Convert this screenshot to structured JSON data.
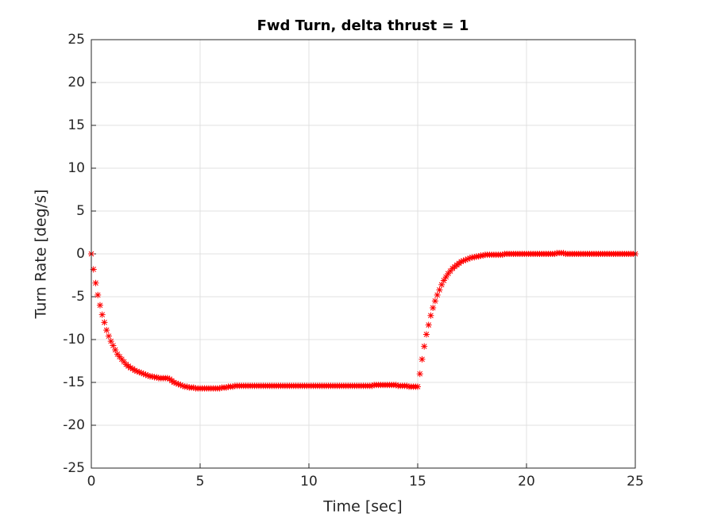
{
  "chart_data": {
    "type": "scatter",
    "title": "Fwd Turn, delta thrust = 1",
    "xlabel": "Time [sec]",
    "ylabel": "Turn Rate [deg/s]",
    "color": "#ff0000",
    "grid": true,
    "xlim": [
      0,
      25
    ],
    "xticks": [
      0,
      5,
      10,
      15,
      20,
      25
    ],
    "ylim": [
      -25,
      25
    ],
    "yticks": [
      -25,
      -20,
      -15,
      -10,
      -5,
      0,
      5,
      10,
      15,
      20,
      25
    ],
    "x": [
      0,
      0.1,
      0.2,
      0.3,
      0.4,
      0.5,
      0.6,
      0.7,
      0.8,
      0.9,
      1,
      1.1,
      1.2,
      1.3,
      1.4,
      1.5,
      1.6,
      1.7,
      1.8,
      1.9,
      2,
      2.1,
      2.2,
      2.3,
      2.4,
      2.5,
      2.6,
      2.7,
      2.8,
      2.9,
      3,
      3.1,
      3.2,
      3.3,
      3.4,
      3.5,
      3.6,
      3.7,
      3.8,
      3.9,
      4,
      4.1,
      4.2,
      4.3,
      4.4,
      4.5,
      4.6,
      4.7,
      4.8,
      4.9,
      5,
      5.1,
      5.2,
      5.3,
      5.4,
      5.5,
      5.6,
      5.7,
      5.8,
      5.9,
      6,
      6.1,
      6.2,
      6.3,
      6.4,
      6.5,
      6.6,
      6.7,
      6.8,
      6.9,
      7,
      7.1,
      7.2,
      7.3,
      7.4,
      7.5,
      7.6,
      7.7,
      7.8,
      7.9,
      8,
      8.1,
      8.2,
      8.3,
      8.4,
      8.5,
      8.6,
      8.7,
      8.8,
      8.9,
      9,
      9.1,
      9.2,
      9.3,
      9.4,
      9.5,
      9.6,
      9.7,
      9.8,
      9.9,
      10,
      10.1,
      10.2,
      10.3,
      10.4,
      10.5,
      10.6,
      10.7,
      10.8,
      10.9,
      11,
      11.1,
      11.2,
      11.3,
      11.4,
      11.5,
      11.6,
      11.7,
      11.8,
      11.9,
      12,
      12.1,
      12.2,
      12.3,
      12.4,
      12.5,
      12.6,
      12.7,
      12.8,
      12.9,
      13,
      13.1,
      13.2,
      13.3,
      13.4,
      13.5,
      13.6,
      13.7,
      13.8,
      13.9,
      14,
      14.1,
      14.2,
      14.3,
      14.4,
      14.5,
      14.6,
      14.7,
      14.8,
      14.9,
      15,
      15.1,
      15.2,
      15.3,
      15.4,
      15.5,
      15.6,
      15.7,
      15.8,
      15.9,
      16,
      16.1,
      16.2,
      16.3,
      16.4,
      16.5,
      16.6,
      16.7,
      16.8,
      16.9,
      17,
      17.1,
      17.2,
      17.3,
      17.4,
      17.5,
      17.6,
      17.7,
      17.8,
      17.9,
      18,
      18.1,
      18.2,
      18.3,
      18.4,
      18.5,
      18.6,
      18.7,
      18.8,
      18.9,
      19,
      19.1,
      19.2,
      19.3,
      19.4,
      19.5,
      19.6,
      19.7,
      19.8,
      19.9,
      20,
      20.1,
      20.2,
      20.3,
      20.4,
      20.5,
      20.6,
      20.7,
      20.8,
      20.9,
      21,
      21.1,
      21.2,
      21.3,
      21.4,
      21.5,
      21.6,
      21.7,
      21.8,
      21.9,
      22,
      22.1,
      22.2,
      22.3,
      22.4,
      22.5,
      22.6,
      22.7,
      22.8,
      22.9,
      23,
      23.1,
      23.2,
      23.3,
      23.4,
      23.5,
      23.6,
      23.7,
      23.8,
      23.9,
      24,
      24.1,
      24.2,
      24.3,
      24.4,
      24.5,
      24.6,
      24.7,
      24.8,
      24.9,
      25
    ],
    "values": [
      0,
      -1.8,
      -3.4,
      -4.8,
      -6.0,
      -7.1,
      -8.0,
      -8.9,
      -9.6,
      -10.2,
      -10.7,
      -11.2,
      -11.7,
      -12.0,
      -12.3,
      -12.6,
      -12.9,
      -13.1,
      -13.3,
      -13.4,
      -13.6,
      -13.7,
      -13.8,
      -13.9,
      -14.0,
      -14.1,
      -14.2,
      -14.3,
      -14.3,
      -14.4,
      -14.4,
      -14.5,
      -14.5,
      -14.5,
      -14.5,
      -14.5,
      -14.6,
      -14.8,
      -15.0,
      -15.1,
      -15.2,
      -15.3,
      -15.4,
      -15.5,
      -15.5,
      -15.6,
      -15.6,
      -15.6,
      -15.7,
      -15.7,
      -15.7,
      -15.7,
      -15.7,
      -15.7,
      -15.7,
      -15.7,
      -15.7,
      -15.7,
      -15.7,
      -15.7,
      -15.6,
      -15.6,
      -15.6,
      -15.5,
      -15.5,
      -15.5,
      -15.4,
      -15.4,
      -15.4,
      -15.4,
      -15.4,
      -15.4,
      -15.4,
      -15.4,
      -15.4,
      -15.4,
      -15.4,
      -15.4,
      -15.4,
      -15.4,
      -15.4,
      -15.4,
      -15.4,
      -15.4,
      -15.4,
      -15.4,
      -15.4,
      -15.4,
      -15.4,
      -15.4,
      -15.4,
      -15.4,
      -15.4,
      -15.4,
      -15.4,
      -15.4,
      -15.4,
      -15.4,
      -15.4,
      -15.4,
      -15.4,
      -15.4,
      -15.4,
      -15.4,
      -15.4,
      -15.4,
      -15.4,
      -15.4,
      -15.4,
      -15.4,
      -15.4,
      -15.4,
      -15.4,
      -15.4,
      -15.4,
      -15.4,
      -15.4,
      -15.4,
      -15.4,
      -15.4,
      -15.4,
      -15.4,
      -15.4,
      -15.4,
      -15.4,
      -15.4,
      -15.4,
      -15.4,
      -15.4,
      -15.4,
      -15.3,
      -15.3,
      -15.3,
      -15.3,
      -15.3,
      -15.3,
      -15.3,
      -15.3,
      -15.3,
      -15.3,
      -15.3,
      -15.4,
      -15.4,
      -15.4,
      -15.4,
      -15.4,
      -15.5,
      -15.5,
      -15.5,
      -15.5,
      -15.5,
      -14.0,
      -12.3,
      -10.8,
      -9.4,
      -8.3,
      -7.2,
      -6.3,
      -5.5,
      -4.8,
      -4.2,
      -3.6,
      -3.1,
      -2.7,
      -2.3,
      -2.0,
      -1.7,
      -1.5,
      -1.3,
      -1.1,
      -0.9,
      -0.8,
      -0.7,
      -0.6,
      -0.5,
      -0.4,
      -0.4,
      -0.3,
      -0.3,
      -0.2,
      -0.2,
      -0.1,
      -0.1,
      -0.1,
      -0.1,
      -0.1,
      -0.1,
      -0.1,
      -0.1,
      -0.1,
      0,
      0,
      0,
      0,
      0,
      0,
      0,
      0,
      0,
      0,
      0,
      0,
      0,
      0,
      0,
      0,
      0,
      0,
      0,
      0,
      0,
      0,
      0,
      0,
      0.1,
      0.1,
      0.1,
      0.1,
      0,
      0,
      0,
      0,
      0,
      0,
      0,
      0,
      0,
      0,
      0,
      0,
      0,
      0,
      0,
      0,
      0,
      0,
      0,
      0,
      0,
      0,
      0,
      0,
      0,
      0,
      0,
      0,
      0,
      0,
      0,
      0,
      0
    ]
  }
}
